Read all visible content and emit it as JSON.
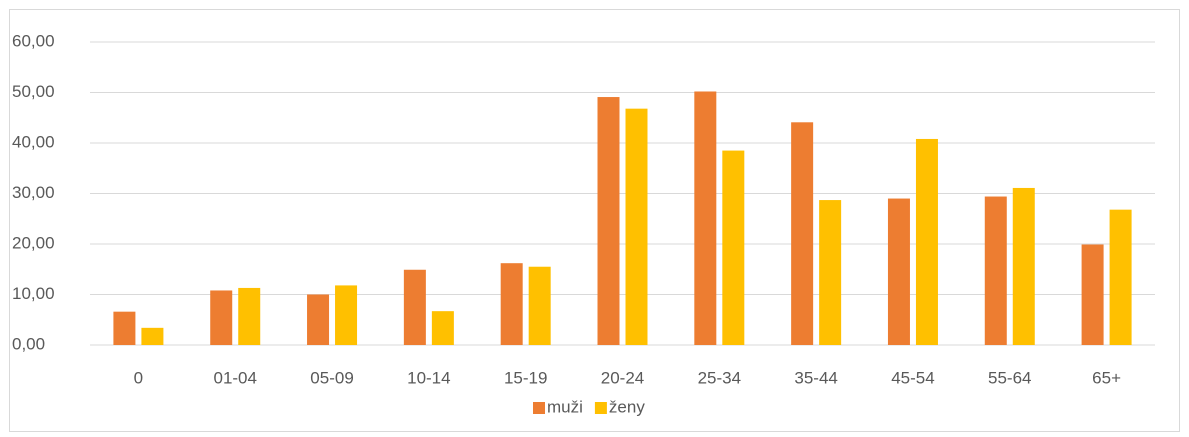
{
  "chart_data": {
    "type": "bar",
    "categories": [
      "0",
      "01-04",
      "05-09",
      "10-14",
      "15-19",
      "20-24",
      "25-34",
      "35-44",
      "45-54",
      "55-64",
      "65+"
    ],
    "series": [
      {
        "name": "muži",
        "color": "#ed7d31",
        "values": [
          6.6,
          10.8,
          10.0,
          14.9,
          16.2,
          49.1,
          50.2,
          44.1,
          29.0,
          29.4,
          19.9
        ]
      },
      {
        "name": "ženy",
        "color": "#ffc000",
        "values": [
          3.4,
          11.3,
          11.8,
          6.7,
          15.5,
          46.8,
          38.5,
          28.7,
          40.8,
          31.1,
          26.8
        ]
      }
    ],
    "ylim": [
      0,
      60
    ],
    "yticks": [
      {
        "value": 0,
        "label": "0,00"
      },
      {
        "value": 10,
        "label": "10,00"
      },
      {
        "value": 20,
        "label": "20,00"
      },
      {
        "value": 30,
        "label": "30,00"
      },
      {
        "value": 40,
        "label": "40,00"
      },
      {
        "value": 50,
        "label": "50,00"
      },
      {
        "value": 60,
        "label": "60,00"
      }
    ],
    "grid": true,
    "legend": "bottom"
  }
}
